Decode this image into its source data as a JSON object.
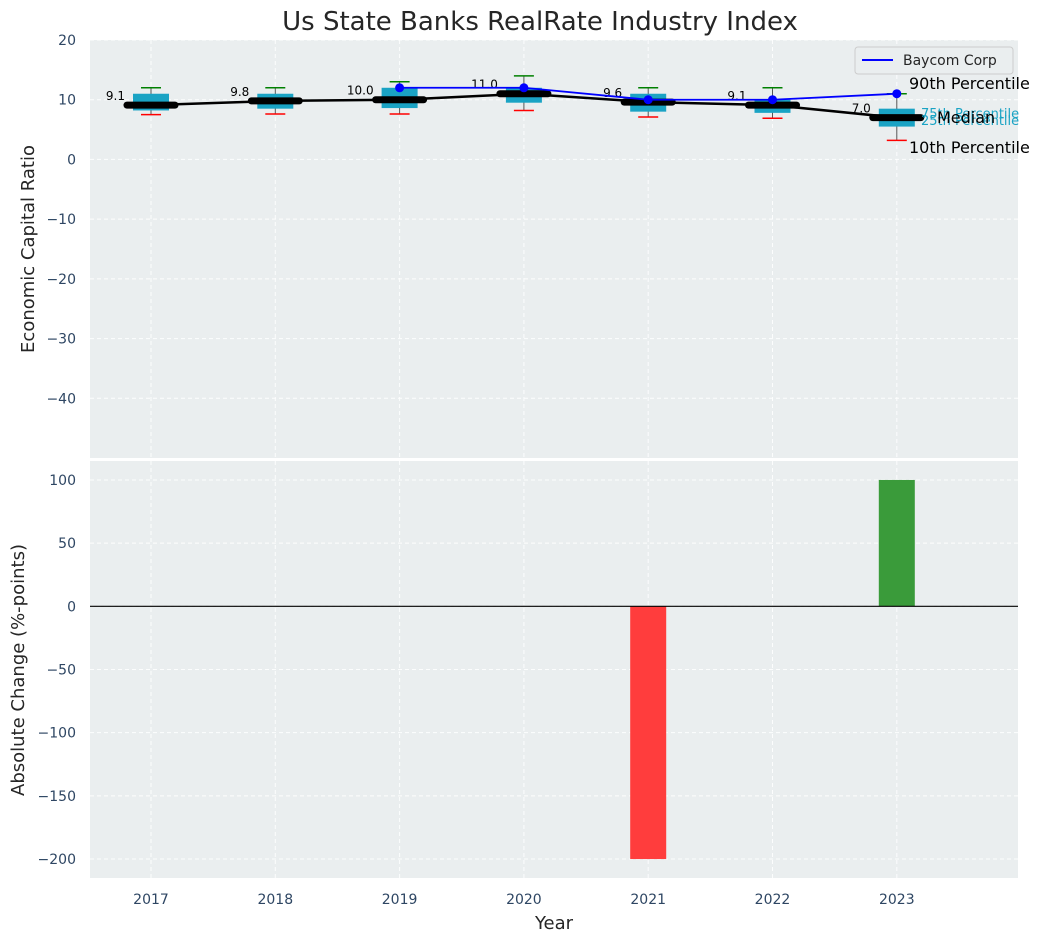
{
  "chart_data": [
    {
      "type": "box",
      "title": "Us State Banks RealRate Industry Index",
      "xlabel": "",
      "ylabel": "Economic Capital Ratio",
      "ylim": [
        -50,
        20
      ],
      "yticks": [
        20,
        10,
        0,
        -10,
        -20,
        -30,
        -40
      ],
      "categories": [
        "2017",
        "2018",
        "2019",
        "2020",
        "2021",
        "2022",
        "2023"
      ],
      "boxes": [
        {
          "year": "2017",
          "p10": 7.5,
          "p25": 8.2,
          "median": 9.1,
          "p75": 11.0,
          "p90": 12.0
        },
        {
          "year": "2018",
          "p10": 7.6,
          "p25": 8.5,
          "median": 9.8,
          "p75": 11.0,
          "p90": 12.0
        },
        {
          "year": "2019",
          "p10": 7.6,
          "p25": 8.6,
          "median": 10.0,
          "p75": 12.0,
          "p90": 13.0
        },
        {
          "year": "2020",
          "p10": 8.2,
          "p25": 9.5,
          "median": 11.0,
          "p75": 12.0,
          "p90": 14.0
        },
        {
          "year": "2021",
          "p10": 7.1,
          "p25": 8.0,
          "median": 9.6,
          "p75": 11.0,
          "p90": 12.0
        },
        {
          "year": "2022",
          "p10": 6.9,
          "p25": 7.8,
          "median": 9.1,
          "p75": 10.0,
          "p90": 12.0
        },
        {
          "year": "2023",
          "p10": 3.2,
          "p25": 5.5,
          "median": 7.0,
          "p75": 8.5,
          "p90": 11.0
        }
      ],
      "median_labels": [
        "9.1",
        "9.8",
        "10.0",
        "11.0",
        "9.6",
        "9.1",
        "7.0"
      ],
      "series": [
        {
          "name": "Baycom Corp",
          "years": [
            "2019",
            "2020",
            "2021",
            "2022",
            "2023"
          ],
          "values": [
            12.0,
            12.0,
            10.0,
            10.0,
            11.0
          ]
        }
      ],
      "legend": {
        "entries": [
          "Baycom Corp"
        ],
        "position": "top-right"
      },
      "annotations": {
        "p90": "90th Percentile",
        "p75": "75th Percentile",
        "median": "Median",
        "p25": "25th Percentile",
        "p10": "10th Percentile"
      },
      "colors": {
        "box": "#1aa3c4",
        "median": "#000000",
        "whisker_top": "#008000",
        "whisker_bottom": "#ff0000",
        "company_line": "#0000ff"
      }
    },
    {
      "type": "bar",
      "xlabel": "Year",
      "ylabel": "Absolute Change (%-points)",
      "ylim": [
        -215,
        115
      ],
      "yticks": [
        100,
        50,
        0,
        -50,
        -100,
        -150,
        -200
      ],
      "categories": [
        "2017",
        "2018",
        "2019",
        "2020",
        "2021",
        "2022",
        "2023"
      ],
      "values": [
        0,
        0,
        0,
        0,
        -200,
        0,
        100
      ],
      "colors": {
        "positive": "#3a9b3a",
        "negative": "#ff3d3d",
        "zero_line": "#000000"
      }
    }
  ]
}
